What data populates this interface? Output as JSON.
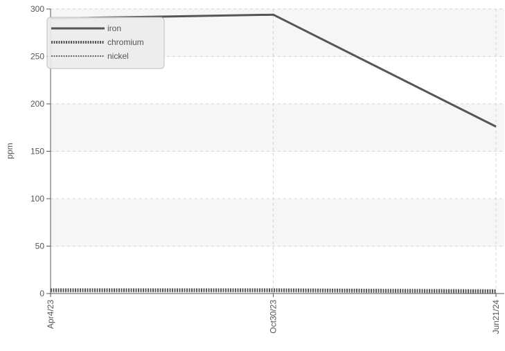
{
  "chart_data": {
    "type": "line",
    "title": "",
    "xlabel": "",
    "ylabel": "ppm",
    "x": [
      "Apr4/23",
      "Oct30/23",
      "Jun21/24"
    ],
    "ylim": [
      0,
      300
    ],
    "yticks": [
      "0",
      "50",
      "100",
      "150",
      "200",
      "250",
      "300"
    ],
    "grid": true,
    "legend_position": "top-left",
    "series": [
      {
        "name": "iron",
        "values": [
          290,
          294,
          176
        ],
        "style": "solid",
        "color": "#555555"
      },
      {
        "name": "chromium",
        "values": [
          4,
          4,
          3
        ],
        "style": "dotted-thick",
        "color": "#555555"
      },
      {
        "name": "nickel",
        "values": [
          2,
          2,
          1
        ],
        "style": "dotted-thin",
        "color": "#666666"
      }
    ]
  }
}
